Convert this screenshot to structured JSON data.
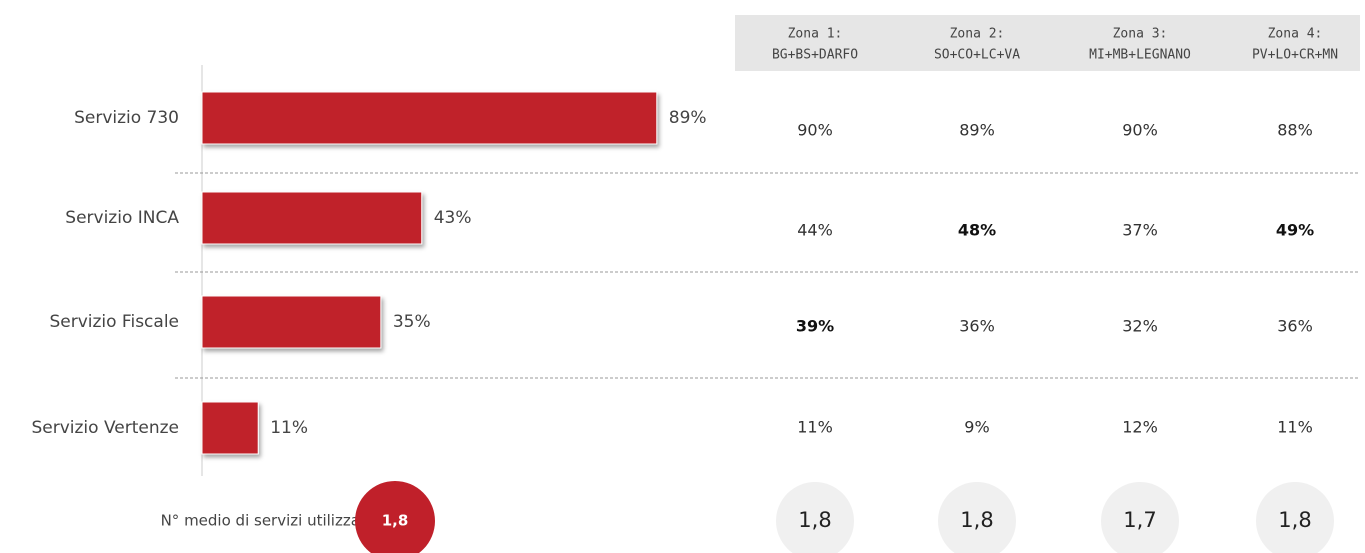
{
  "chart_data": {
    "type": "bar",
    "orientation": "horizontal",
    "categories": [
      "Servizio 730",
      "Servizio INCA",
      "Servizio Fiscale",
      "Servizio Vertenze"
    ],
    "values": [
      89,
      43,
      35,
      11
    ],
    "value_labels": [
      "89%",
      "43%",
      "35%",
      "11%"
    ],
    "color": "#c0202a",
    "xlim": [
      0,
      100
    ]
  },
  "average": {
    "label": "N° medio di servizi utilizzati:",
    "value_label": "1,8",
    "color": "#c0202a"
  },
  "zones": [
    {
      "name": "Zona 1:",
      "area": "BG+BS+DARFO",
      "values": [
        "90%",
        "44%",
        "39%",
        "11%"
      ],
      "bold": [
        false,
        false,
        true,
        false
      ],
      "average": "1,8"
    },
    {
      "name": "Zona 2:",
      "area": "SO+CO+LC+VA",
      "values": [
        "89%",
        "48%",
        "36%",
        "9%"
      ],
      "bold": [
        false,
        true,
        false,
        false
      ],
      "average": "1,8"
    },
    {
      "name": "Zona 3:",
      "area": "MI+MB+LEGNANO",
      "values": [
        "90%",
        "37%",
        "32%",
        "12%"
      ],
      "bold": [
        false,
        false,
        false,
        false
      ],
      "average": "1,7"
    },
    {
      "name": "Zona 4:",
      "area": "PV+LO+CR+MN",
      "values": [
        "88%",
        "49%",
        "36%",
        "11%"
      ],
      "bold": [
        false,
        true,
        false,
        false
      ],
      "average": "1,8"
    }
  ]
}
